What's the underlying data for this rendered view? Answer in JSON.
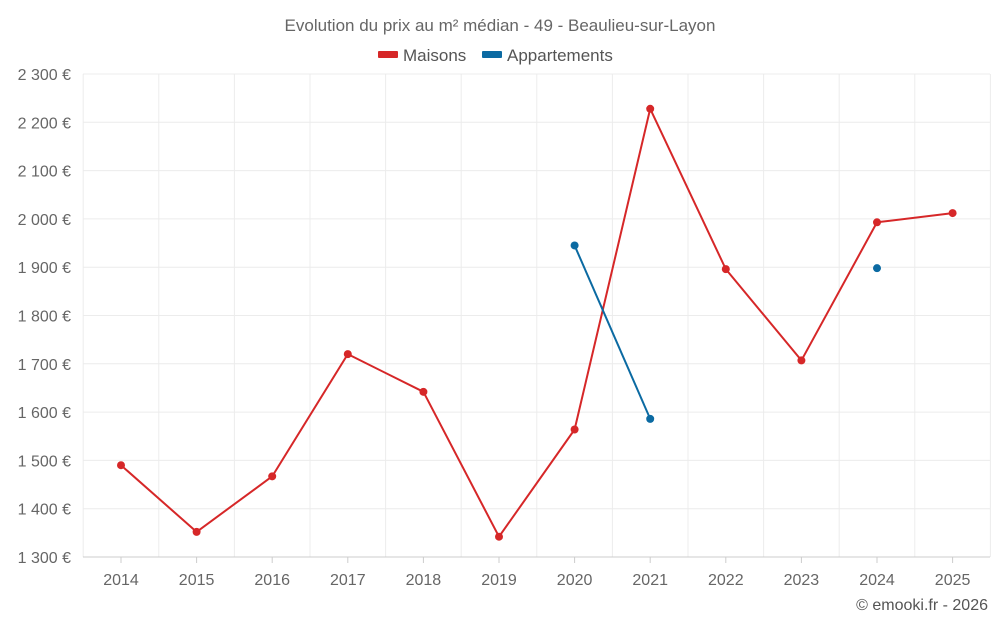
{
  "chart_data": {
    "type": "line",
    "title": "Evolution du prix au m² médian - 49 - Beaulieu-sur-Layon",
    "categories": [
      "2014",
      "2015",
      "2016",
      "2017",
      "2018",
      "2019",
      "2020",
      "2021",
      "2022",
      "2023",
      "2024",
      "2025"
    ],
    "series": [
      {
        "name": "Maisons",
        "color": "#d62728",
        "values": [
          1490,
          1352,
          1467,
          1720,
          1642,
          1342,
          1564,
          2228,
          1896,
          1707,
          1993,
          2012
        ]
      },
      {
        "name": "Appartements",
        "color": "#0b6aa2",
        "values": [
          null,
          null,
          null,
          null,
          null,
          null,
          1945,
          1586,
          null,
          null,
          1898,
          null
        ]
      }
    ],
    "ylim": [
      1300,
      2300
    ],
    "yticks": [
      1300,
      1400,
      1500,
      1600,
      1700,
      1800,
      1900,
      2000,
      2100,
      2200,
      2300
    ],
    "ytick_labels": [
      "1 300 €",
      "1 400 €",
      "1 500 €",
      "1 600 €",
      "1 700 €",
      "1 800 €",
      "1 900 €",
      "2 000 €",
      "2 100 €",
      "2 200 €",
      "2 300 €"
    ],
    "xlabel": "",
    "ylabel": "",
    "legend_position": "top-center",
    "grid": true
  },
  "credit": "© emooki.fr - 2026"
}
